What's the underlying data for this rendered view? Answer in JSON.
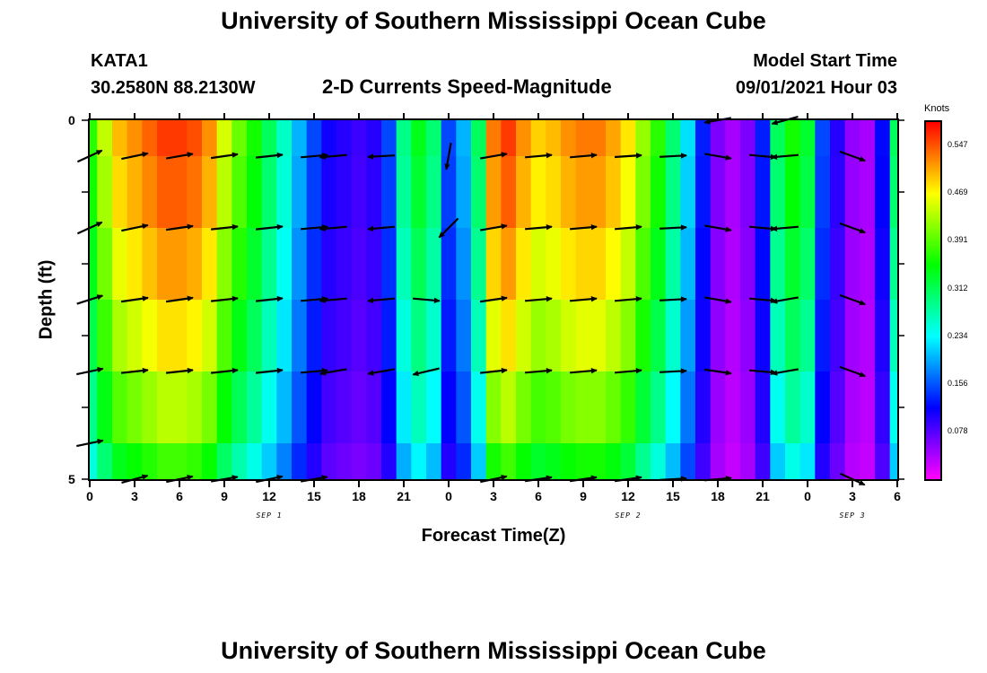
{
  "title_top": "University of Southern Mississippi Ocean Cube",
  "title_bottom": "University of Southern Mississippi Ocean Cube",
  "station": {
    "name": "KATA1",
    "coords": "30.2580N  88.2130W"
  },
  "subtitle": "2-D Currents Speed-Magnitude",
  "model": {
    "label": "Model Start Time",
    "value": "09/01/2021 Hour 03"
  },
  "colors": {
    "arrow": "#000000",
    "background": "#ffffff"
  },
  "chart_data": {
    "type": "heatmap",
    "title": "2-D Currents Speed-Magnitude",
    "xlabel": "Forecast Time(Z)",
    "ylabel": "Depth (ft)",
    "x_range_hours": [
      0,
      54
    ],
    "y_range_ft": [
      0,
      5
    ],
    "x_ticks": [
      "0",
      "3",
      "6",
      "9",
      "12",
      "15",
      "18",
      "21",
      "0",
      "3",
      "6",
      "9",
      "12",
      "15",
      "18",
      "21",
      "0",
      "3",
      "6"
    ],
    "y_ticks": [
      "0",
      "5"
    ],
    "date_labels": [
      {
        "hour": 12,
        "text": "SEP 1"
      },
      {
        "hour": 36,
        "text": "SEP 2"
      },
      {
        "hour": 51,
        "text": "SEP 3"
      }
    ],
    "colorbar": {
      "label": "Knots",
      "min": 0.0,
      "max": 0.586,
      "ticks": [
        "0.547",
        "0.469",
        "0.391",
        "0.312",
        "0.234",
        "0.156",
        "0.078"
      ],
      "tick_values": [
        0.547,
        0.469,
        0.391,
        0.312,
        0.234,
        0.156,
        0.078
      ]
    },
    "times": [
      0,
      1,
      2,
      3,
      4,
      5,
      6,
      7,
      8,
      9,
      10,
      11,
      12,
      13,
      14,
      15,
      16,
      17,
      18,
      19,
      20,
      21,
      22,
      23,
      24,
      25,
      26,
      27,
      28,
      29,
      30,
      31,
      32,
      33,
      34,
      35,
      36,
      37,
      38,
      39,
      40,
      41,
      42,
      43,
      44,
      45,
      46,
      47,
      48,
      49,
      50,
      51,
      52,
      53,
      54
    ],
    "speed_profile": [
      0.37,
      0.44,
      0.5,
      0.52,
      0.54,
      0.56,
      0.56,
      0.55,
      0.52,
      0.45,
      0.4,
      0.36,
      0.31,
      0.26,
      0.2,
      0.15,
      0.11,
      0.1,
      0.09,
      0.1,
      0.15,
      0.29,
      0.34,
      0.3,
      0.15,
      0.2,
      0.31,
      0.53,
      0.56,
      0.52,
      0.49,
      0.5,
      0.52,
      0.53,
      0.53,
      0.51,
      0.48,
      0.42,
      0.37,
      0.3,
      0.22,
      0.13,
      0.06,
      0.04,
      0.06,
      0.13,
      0.31,
      0.36,
      0.33,
      0.15,
      0.1,
      0.05,
      0.04,
      0.12,
      0.31
    ],
    "depth_factors": [
      1.0,
      0.97,
      0.92,
      0.86,
      0.78,
      0.68
    ],
    "vectors": [
      {
        "time": 0,
        "depths": [
          0.5,
          1.5,
          2.5,
          3.5,
          4.5
        ],
        "angles_deg": [
          25,
          25,
          18,
          12,
          12
        ]
      },
      {
        "time": 3,
        "depths": [
          0.5,
          1.5,
          2.5,
          3.5,
          5.0
        ],
        "angles_deg": [
          12,
          12,
          8,
          6,
          15
        ]
      },
      {
        "time": 6,
        "depths": [
          0.5,
          1.5,
          2.5,
          3.5,
          5.0
        ],
        "angles_deg": [
          10,
          8,
          8,
          6,
          12
        ]
      },
      {
        "time": 9,
        "depths": [
          0.5,
          1.5,
          2.5,
          3.5,
          5.0
        ],
        "angles_deg": [
          8,
          6,
          6,
          6,
          10
        ]
      },
      {
        "time": 12,
        "depths": [
          0.5,
          1.5,
          2.5,
          3.5,
          5.0
        ],
        "angles_deg": [
          6,
          6,
          6,
          6,
          12
        ]
      },
      {
        "time": 15,
        "depths": [
          0.5,
          1.5,
          2.5,
          3.5,
          5.0
        ],
        "angles_deg": [
          5,
          5,
          5,
          5,
          10
        ]
      },
      {
        "time": 16.3,
        "depths": [
          0.5,
          1.5,
          2.5,
          3.5
        ],
        "angles_deg": [
          185,
          185,
          185,
          190
        ]
      },
      {
        "time": 19.5,
        "depths": [
          0.5,
          1.5,
          2.5,
          3.5
        ],
        "angles_deg": [
          183,
          185,
          185,
          190
        ]
      },
      {
        "time": 22.5,
        "depths": [
          2.5,
          3.5
        ],
        "angles_deg": [
          -5,
          193
        ]
      },
      {
        "time": 24,
        "depths": [
          0.5,
          1.5
        ],
        "angles_deg": [
          -100,
          -135
        ]
      },
      {
        "time": 27,
        "depths": [
          0.5,
          1.5,
          2.5,
          3.5,
          5.0
        ],
        "angles_deg": [
          10,
          10,
          8,
          6,
          12
        ]
      },
      {
        "time": 30,
        "depths": [
          0.5,
          1.5,
          2.5,
          3.5,
          5.0
        ],
        "angles_deg": [
          5,
          5,
          5,
          5,
          8
        ]
      },
      {
        "time": 33,
        "depths": [
          0.5,
          1.5,
          2.5,
          3.5,
          5.0
        ],
        "angles_deg": [
          5,
          5,
          5,
          5,
          8
        ]
      },
      {
        "time": 36,
        "depths": [
          0.5,
          1.5,
          2.5,
          3.5,
          5.0
        ],
        "angles_deg": [
          4,
          5,
          5,
          5,
          8
        ]
      },
      {
        "time": 39,
        "depths": [
          0.5,
          1.5,
          2.5,
          3.5,
          5.0
        ],
        "angles_deg": [
          3,
          3,
          3,
          3,
          3
        ]
      },
      {
        "time": 42,
        "depths": [
          0.0,
          0.5,
          1.5,
          2.5,
          3.5,
          5.0
        ],
        "angles_deg": [
          190,
          -10,
          -10,
          -10,
          -8,
          5
        ]
      },
      {
        "time": 45,
        "depths": [
          0.5,
          1.5,
          2.5,
          3.5
        ],
        "angles_deg": [
          -5,
          -5,
          -5,
          -5
        ]
      },
      {
        "time": 46.5,
        "depths": [
          0.0,
          0.5,
          1.5,
          2.5,
          3.5
        ],
        "angles_deg": [
          195,
          185,
          185,
          190,
          190
        ]
      },
      {
        "time": 51,
        "depths": [
          0.5,
          1.5,
          2.5,
          3.5,
          5.0
        ],
        "angles_deg": [
          -20,
          -20,
          -20,
          -20,
          -25
        ]
      }
    ]
  }
}
